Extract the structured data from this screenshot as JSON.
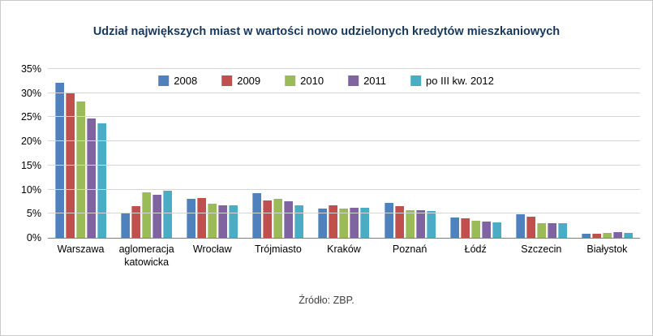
{
  "chart_data": {
    "type": "bar",
    "title": "Udział największych miast w wartości nowo udzielonych kredytów mieszkaniowych",
    "categories": [
      "Warszawa",
      "aglomeracja katowicka",
      "Wrocław",
      "Trójmiasto",
      "Kraków",
      "Poznań",
      "Łódź",
      "Szczecin",
      "Białystok"
    ],
    "series": [
      {
        "name": "2008",
        "color": "#4f81bd",
        "values": [
          32.2,
          5.2,
          8.0,
          9.3,
          6.0,
          7.2,
          4.2,
          4.8,
          0.8
        ]
      },
      {
        "name": "2009",
        "color": "#c0504d",
        "values": [
          30.2,
          6.5,
          8.2,
          7.7,
          6.8,
          6.5,
          4.0,
          4.3,
          0.8
        ]
      },
      {
        "name": "2010",
        "color": "#9bbb59",
        "values": [
          28.2,
          9.5,
          7.0,
          8.0,
          6.0,
          5.8,
          3.5,
          3.0,
          1.0
        ]
      },
      {
        "name": "2011",
        "color": "#8064a2",
        "values": [
          24.7,
          9.0,
          6.7,
          7.5,
          6.2,
          5.7,
          3.3,
          3.1,
          1.2
        ]
      },
      {
        "name": "po III kw. 2012",
        "color": "#4bacc6",
        "values": [
          23.8,
          9.8,
          6.8,
          6.8,
          6.2,
          5.5,
          3.2,
          3.0,
          1.0
        ]
      }
    ],
    "ylim": [
      0,
      35
    ],
    "ytick_step": 5,
    "ytick_suffix": "%",
    "grid": "horizontal",
    "legend_position": "top",
    "xlabel": "",
    "ylabel": "",
    "source": "Źródło: ZBP."
  }
}
